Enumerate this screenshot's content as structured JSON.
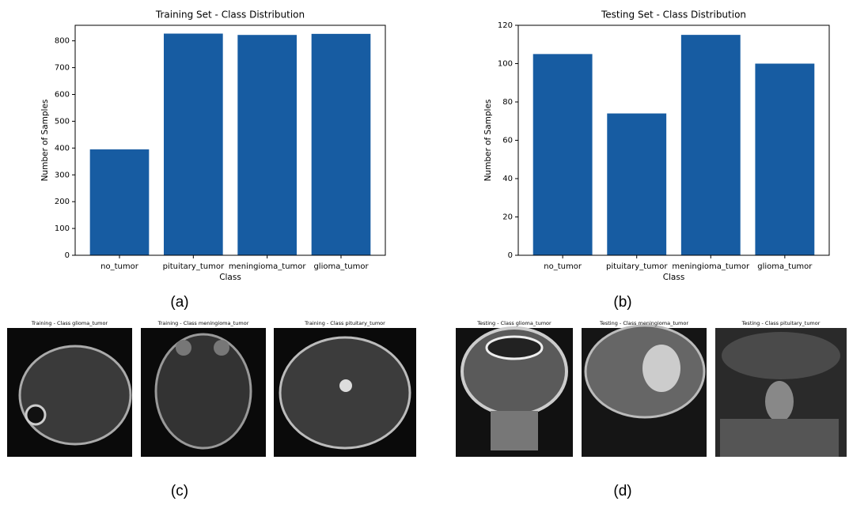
{
  "chart_data": [
    {
      "type": "bar",
      "title": "Training Set - Class Distribution",
      "xlabel": "Class",
      "ylabel": "Number of Samples",
      "categories": [
        "no_tumor",
        "pituitary_tumor",
        "meningioma_tumor",
        "glioma_tumor"
      ],
      "values": [
        395,
        827,
        822,
        826
      ],
      "color": "#175ca2",
      "ylim": [
        0,
        858
      ],
      "yticks": [
        0,
        100,
        200,
        300,
        400,
        500,
        600,
        700,
        800
      ]
    },
    {
      "type": "bar",
      "title": "Testing Set - Class Distribution",
      "xlabel": "Class",
      "ylabel": "Number of Samples",
      "categories": [
        "no_tumor",
        "pituitary_tumor",
        "meningioma_tumor",
        "glioma_tumor"
      ],
      "values": [
        105,
        74,
        115,
        100
      ],
      "color": "#175ca2",
      "ylim": [
        0,
        120
      ],
      "yticks": [
        0,
        20,
        40,
        60,
        80,
        100,
        120
      ]
    }
  ],
  "panels": [
    "(a)",
    "(b)",
    "(c)",
    "(d)"
  ],
  "images": [
    "Training - Class glioma_tumor",
    "Training - Class meningioma_tumor",
    "Training - Class pituitary_tumor",
    "Testing - Class glioma_tumor",
    "Testing - Class meningioma_tumor",
    "Testing - Class pituitary_tumor"
  ]
}
